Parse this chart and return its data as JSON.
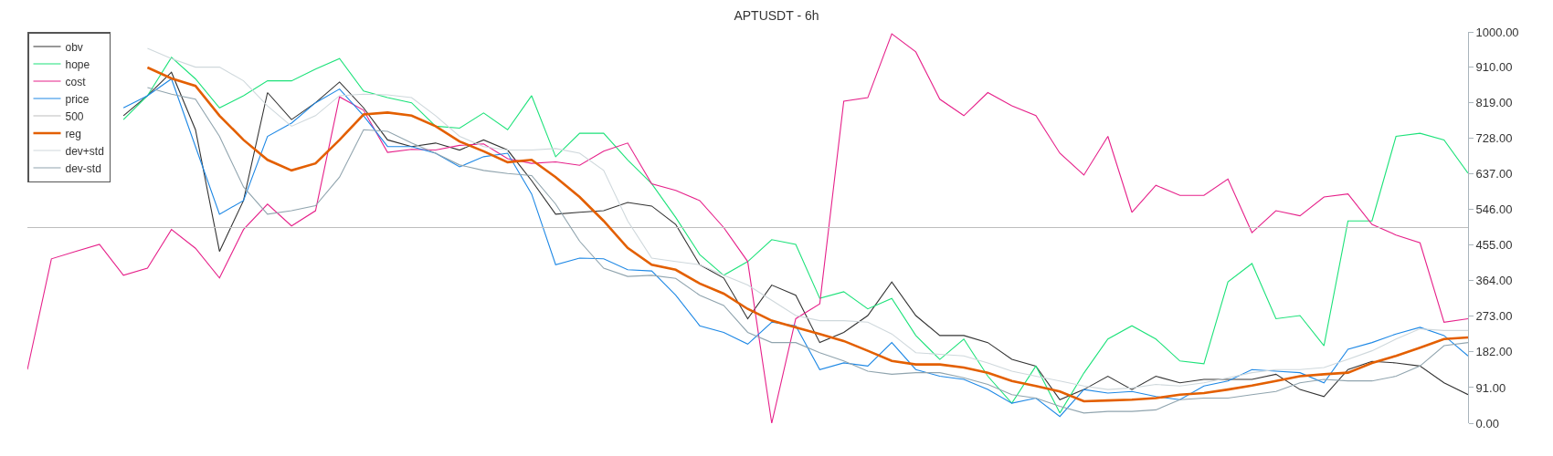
{
  "chart_data": {
    "type": "line",
    "title": "APTUSDT - 6h",
    "tick_labels": "y",
    "legend": "top left",
    "ylim": [
      0,
      1000
    ],
    "yticks": [
      {
        "value": 0,
        "label": "0.00"
      },
      {
        "value": 91,
        "label": "91.00"
      },
      {
        "value": 182,
        "label": "182.00"
      },
      {
        "value": 273,
        "label": "273.00"
      },
      {
        "value": 364,
        "label": "364.00"
      },
      {
        "value": 455,
        "label": "455.00"
      },
      {
        "value": 546,
        "label": "546.00"
      },
      {
        "value": 637,
        "label": "637.00"
      },
      {
        "value": 728,
        "label": "728.00"
      },
      {
        "value": 819,
        "label": "819.00"
      },
      {
        "value": 910,
        "label": "910.00"
      },
      {
        "value": 1000,
        "label": "1000.00"
      }
    ],
    "categories": [
      null,
      null,
      null,
      null,
      null,
      null,
      null,
      null,
      null,
      null,
      null,
      null,
      null,
      null,
      null,
      null,
      null,
      null,
      null,
      null,
      null,
      null,
      null,
      null,
      null,
      null,
      null,
      null,
      null,
      null,
      null,
      null,
      null,
      null,
      null,
      null,
      null,
      null,
      null,
      null,
      null,
      null,
      null,
      null,
      null,
      null,
      null,
      null,
      null,
      null,
      null,
      null,
      null,
      null,
      null,
      null,
      null,
      null,
      null,
      null,
      null
    ],
    "series": [
      {
        "name": "obv",
        "color": "#333333",
        "values": [
          null,
          null,
          null,
          null,
          786,
          837,
          897,
          750,
          439,
          569,
          845,
          776,
          819,
          872,
          806,
          724,
          707,
          716,
          698,
          724,
          698,
          620,
          534,
          539,
          543,
          564,
          555,
          508,
          405,
          371,
          267,
          353,
          327,
          206,
          232,
          275,
          361,
          275,
          224,
          224,
          206,
          163,
          146,
          60,
          86,
          120,
          86,
          120,
          103,
          112,
          112,
          112,
          125,
          86,
          68,
          137,
          158,
          154,
          146,
          103,
          73
        ]
      },
      {
        "name": "hope",
        "color": "#1de27a",
        "values": [
          null,
          null,
          null,
          null,
          776,
          837,
          935,
          880,
          806,
          837,
          875,
          875,
          905,
          932,
          849,
          832,
          819,
          759,
          754,
          793,
          750,
          837,
          681,
          741,
          741,
          673,
          612,
          526,
          431,
          378,
          413,
          469,
          457,
          319,
          336,
          292,
          319,
          224,
          163,
          215,
          120,
          51,
          146,
          26,
          128,
          215,
          249,
          215,
          159,
          152,
          361,
          408,
          267,
          275,
          198,
          517,
          517,
          733,
          741,
          724,
          639
        ]
      },
      {
        "name": "cost",
        "color": "#e6218a",
        "values": [
          137,
          420,
          439,
          457,
          378,
          396,
          495,
          447,
          371,
          495,
          560,
          504,
          543,
          834,
          800,
          692,
          700,
          698,
          710,
          714,
          676,
          664,
          668,
          659,
          695,
          716,
          612,
          595,
          569,
          500,
          413,
          0,
          267,
          305,
          823,
          832,
          995,
          949,
          828,
          786,
          845,
          811,
          786,
          690,
          634,
          733,
          539,
          608,
          582,
          582,
          624,
          487,
          543,
          530,
          578,
          586,
          508,
          481,
          461,
          258,
          267
        ]
      },
      {
        "name": "price",
        "color": "#1e88e5",
        "values": [
          null,
          null,
          null,
          null,
          806,
          837,
          880,
          707,
          534,
          569,
          733,
          767,
          819,
          854,
          786,
          707,
          707,
          690,
          655,
          681,
          690,
          586,
          405,
          422,
          420,
          392,
          389,
          327,
          249,
          232,
          202,
          258,
          249,
          137,
          154,
          146,
          206,
          137,
          120,
          112,
          86,
          51,
          64,
          17,
          86,
          77,
          81,
          68,
          60,
          95,
          108,
          137,
          133,
          129,
          103,
          189,
          206,
          228,
          245,
          224,
          172
        ]
      },
      {
        "name": "500",
        "color": "#bdbdbd",
        "values": [
          500,
          500,
          500,
          500,
          500,
          500,
          500,
          500,
          500,
          500,
          500,
          500,
          500,
          500,
          500,
          500,
          500,
          500,
          500,
          500,
          500,
          500,
          500,
          500,
          500,
          500,
          500,
          500,
          500,
          500,
          500,
          500,
          500,
          500,
          500,
          500,
          500,
          500,
          500,
          500,
          500,
          500,
          500,
          500,
          500,
          500,
          500,
          500,
          500,
          500,
          500,
          500,
          500,
          500,
          500,
          500,
          500,
          500,
          500,
          500,
          500
        ]
      },
      {
        "name": "reg",
        "color": "#e35f00",
        "values": [
          null,
          null,
          null,
          null,
          null,
          909,
          881,
          862,
          786,
          724,
          673,
          646,
          664,
          724,
          789,
          794,
          786,
          759,
          720,
          695,
          667,
          673,
          629,
          578,
          517,
          448,
          405,
          392,
          357,
          331,
          292,
          262,
          245,
          228,
          210,
          185,
          159,
          150,
          150,
          142,
          129,
          108,
          95,
          81,
          56,
          58,
          60,
          64,
          73,
          77,
          86,
          96,
          108,
          120,
          125,
          129,
          154,
          172,
          193,
          215,
          219
        ]
      },
      {
        "name": "dev+std",
        "color": "#cfd8dc",
        "values": [
          null,
          null,
          null,
          null,
          null,
          958,
          932,
          910,
          910,
          875,
          811,
          759,
          786,
          837,
          841,
          839,
          832,
          786,
          733,
          707,
          698,
          698,
          702,
          690,
          646,
          517,
          422,
          413,
          405,
          378,
          353,
          314,
          275,
          262,
          262,
          258,
          228,
          180,
          176,
          172,
          154,
          133,
          120,
          108,
          95,
          86,
          90,
          99,
          95,
          103,
          116,
          129,
          137,
          137,
          142,
          163,
          185,
          215,
          241,
          237,
          237
        ]
      },
      {
        "name": "dev-std",
        "color": "#90a4ae",
        "values": [
          null,
          null,
          null,
          null,
          null,
          858,
          841,
          828,
          733,
          604,
          534,
          543,
          556,
          629,
          750,
          746,
          716,
          690,
          660,
          646,
          638,
          633,
          560,
          465,
          396,
          375,
          378,
          370,
          327,
          301,
          232,
          206,
          206,
          180,
          159,
          133,
          125,
          129,
          129,
          116,
          99,
          73,
          64,
          43,
          26,
          30,
          30,
          34,
          60,
          64,
          64,
          73,
          81,
          103,
          112,
          108,
          108,
          120,
          146,
          198,
          206
        ]
      }
    ]
  }
}
